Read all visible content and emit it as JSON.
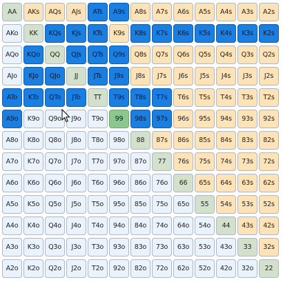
{
  "grid": {
    "rows": [
      [
        {
          "l": "AA",
          "s": 0
        },
        {
          "l": "AKs",
          "s": 0
        },
        {
          "l": "AQs",
          "s": 0
        },
        {
          "l": "AJs",
          "s": 0
        },
        {
          "l": "ATs",
          "s": 1
        },
        {
          "l": "A9s",
          "s": 1
        },
        {
          "l": "A8s",
          "s": 0
        },
        {
          "l": "A7s",
          "s": 0
        },
        {
          "l": "A6s",
          "s": 0
        },
        {
          "l": "A5s",
          "s": 0
        },
        {
          "l": "A4s",
          "s": 0
        },
        {
          "l": "A3s",
          "s": 0
        },
        {
          "l": "A2s",
          "s": 0
        }
      ],
      [
        {
          "l": "AKo",
          "s": 0
        },
        {
          "l": "KK",
          "s": 0
        },
        {
          "l": "KQs",
          "s": 1
        },
        {
          "l": "KJs",
          "s": 1
        },
        {
          "l": "KTs",
          "s": 1
        },
        {
          "l": "K9s",
          "s": 0
        },
        {
          "l": "K8s",
          "s": 1
        },
        {
          "l": "K7s",
          "s": 1
        },
        {
          "l": "K6s",
          "s": 1
        },
        {
          "l": "K5s",
          "s": 1
        },
        {
          "l": "K4s",
          "s": 1
        },
        {
          "l": "K3s",
          "s": 1
        },
        {
          "l": "K2s",
          "s": 1
        }
      ],
      [
        {
          "l": "AQo",
          "s": 0
        },
        {
          "l": "KQo",
          "s": 1
        },
        {
          "l": "QQ",
          "s": 0
        },
        {
          "l": "QJs",
          "s": 1
        },
        {
          "l": "QTs",
          "s": 1
        },
        {
          "l": "Q9s",
          "s": 1
        },
        {
          "l": "Q8s",
          "s": 0
        },
        {
          "l": "Q7s",
          "s": 0
        },
        {
          "l": "Q6s",
          "s": 0
        },
        {
          "l": "Q5s",
          "s": 0
        },
        {
          "l": "Q4s",
          "s": 0
        },
        {
          "l": "Q3s",
          "s": 0
        },
        {
          "l": "Q2s",
          "s": 0
        }
      ],
      [
        {
          "l": "AJo",
          "s": 0
        },
        {
          "l": "KJo",
          "s": 1
        },
        {
          "l": "QJo",
          "s": 1
        },
        {
          "l": "JJ",
          "s": 0
        },
        {
          "l": "JTs",
          "s": 1
        },
        {
          "l": "J9s",
          "s": 1
        },
        {
          "l": "J8s",
          "s": 0
        },
        {
          "l": "J7s",
          "s": 0
        },
        {
          "l": "J6s",
          "s": 0
        },
        {
          "l": "J5s",
          "s": 0
        },
        {
          "l": "J4s",
          "s": 0
        },
        {
          "l": "J3s",
          "s": 0
        },
        {
          "l": "J2s",
          "s": 0
        }
      ],
      [
        {
          "l": "ATo",
          "s": 1
        },
        {
          "l": "KTo",
          "s": 1
        },
        {
          "l": "QTo",
          "s": 1
        },
        {
          "l": "JTo",
          "s": 1
        },
        {
          "l": "TT",
          "s": 0
        },
        {
          "l": "T9s",
          "s": 1
        },
        {
          "l": "T8s",
          "s": 1
        },
        {
          "l": "T7s",
          "s": 1
        },
        {
          "l": "T6s",
          "s": 0
        },
        {
          "l": "T5s",
          "s": 0
        },
        {
          "l": "T4s",
          "s": 0
        },
        {
          "l": "T3s",
          "s": 0
        },
        {
          "l": "T2s",
          "s": 0
        }
      ],
      [
        {
          "l": "A9o",
          "s": 1
        },
        {
          "l": "K9o",
          "s": 0
        },
        {
          "l": "Q9o",
          "s": 0
        },
        {
          "l": "J9o",
          "s": 0
        },
        {
          "l": "T9o",
          "s": 0
        },
        {
          "l": "99",
          "s": 1
        },
        {
          "l": "98s",
          "s": 1
        },
        {
          "l": "97s",
          "s": 1
        },
        {
          "l": "96s",
          "s": 0
        },
        {
          "l": "95s",
          "s": 0
        },
        {
          "l": "94s",
          "s": 0
        },
        {
          "l": "93s",
          "s": 0
        },
        {
          "l": "92s",
          "s": 0
        }
      ],
      [
        {
          "l": "A8o",
          "s": 0
        },
        {
          "l": "K8o",
          "s": 0
        },
        {
          "l": "Q8o",
          "s": 0
        },
        {
          "l": "J8o",
          "s": 0
        },
        {
          "l": "T8o",
          "s": 0
        },
        {
          "l": "98o",
          "s": 0
        },
        {
          "l": "88",
          "s": 0
        },
        {
          "l": "87s",
          "s": 0
        },
        {
          "l": "86s",
          "s": 0
        },
        {
          "l": "85s",
          "s": 0
        },
        {
          "l": "84s",
          "s": 0
        },
        {
          "l": "83s",
          "s": 0
        },
        {
          "l": "82s",
          "s": 0
        }
      ],
      [
        {
          "l": "A7o",
          "s": 0
        },
        {
          "l": "K7o",
          "s": 0
        },
        {
          "l": "Q7o",
          "s": 0
        },
        {
          "l": "J7o",
          "s": 0
        },
        {
          "l": "T7o",
          "s": 0
        },
        {
          "l": "97o",
          "s": 0
        },
        {
          "l": "87o",
          "s": 0
        },
        {
          "l": "77",
          "s": 0
        },
        {
          "l": "76s",
          "s": 0
        },
        {
          "l": "75s",
          "s": 0
        },
        {
          "l": "74s",
          "s": 0
        },
        {
          "l": "73s",
          "s": 0
        },
        {
          "l": "72s",
          "s": 0
        }
      ],
      [
        {
          "l": "A6o",
          "s": 0
        },
        {
          "l": "K6o",
          "s": 0
        },
        {
          "l": "Q6o",
          "s": 0
        },
        {
          "l": "J6o",
          "s": 0
        },
        {
          "l": "T6o",
          "s": 0
        },
        {
          "l": "96o",
          "s": 0
        },
        {
          "l": "86o",
          "s": 0
        },
        {
          "l": "76o",
          "s": 0
        },
        {
          "l": "66",
          "s": 0
        },
        {
          "l": "65s",
          "s": 0
        },
        {
          "l": "64s",
          "s": 0
        },
        {
          "l": "63s",
          "s": 0
        },
        {
          "l": "62s",
          "s": 0
        }
      ],
      [
        {
          "l": "A5o",
          "s": 0
        },
        {
          "l": "K5o",
          "s": 0
        },
        {
          "l": "Q5o",
          "s": 0
        },
        {
          "l": "J5o",
          "s": 0
        },
        {
          "l": "T5o",
          "s": 0
        },
        {
          "l": "95o",
          "s": 0
        },
        {
          "l": "85o",
          "s": 0
        },
        {
          "l": "75o",
          "s": 0
        },
        {
          "l": "65o",
          "s": 0
        },
        {
          "l": "55",
          "s": 0
        },
        {
          "l": "54s",
          "s": 0
        },
        {
          "l": "53s",
          "s": 0
        },
        {
          "l": "52s",
          "s": 0
        }
      ],
      [
        {
          "l": "A4o",
          "s": 0
        },
        {
          "l": "K4o",
          "s": 0
        },
        {
          "l": "Q4o",
          "s": 0
        },
        {
          "l": "J4o",
          "s": 0
        },
        {
          "l": "T4o",
          "s": 0
        },
        {
          "l": "94o",
          "s": 0
        },
        {
          "l": "84o",
          "s": 0
        },
        {
          "l": "74o",
          "s": 0
        },
        {
          "l": "64o",
          "s": 0
        },
        {
          "l": "54o",
          "s": 0
        },
        {
          "l": "44",
          "s": 0
        },
        {
          "l": "43s",
          "s": 0
        },
        {
          "l": "42s",
          "s": 0
        }
      ],
      [
        {
          "l": "A3o",
          "s": 0
        },
        {
          "l": "K3o",
          "s": 0
        },
        {
          "l": "Q3o",
          "s": 0
        },
        {
          "l": "J3o",
          "s": 0
        },
        {
          "l": "T3o",
          "s": 0
        },
        {
          "l": "93o",
          "s": 0
        },
        {
          "l": "83o",
          "s": 0
        },
        {
          "l": "73o",
          "s": 0
        },
        {
          "l": "63o",
          "s": 0
        },
        {
          "l": "53o",
          "s": 0
        },
        {
          "l": "43o",
          "s": 0
        },
        {
          "l": "33",
          "s": 0
        },
        {
          "l": "32s",
          "s": 0
        }
      ],
      [
        {
          "l": "A2o",
          "s": 0
        },
        {
          "l": "K2o",
          "s": 0
        },
        {
          "l": "Q2o",
          "s": 0
        },
        {
          "l": "J2o",
          "s": 0
        },
        {
          "l": "T2o",
          "s": 0
        },
        {
          "l": "92o",
          "s": 0
        },
        {
          "l": "82o",
          "s": 0
        },
        {
          "l": "72o",
          "s": 0
        },
        {
          "l": "62o",
          "s": 0
        },
        {
          "l": "52o",
          "s": 0
        },
        {
          "l": "42o",
          "s": 0
        },
        {
          "l": "32o",
          "s": 0
        },
        {
          "l": "22",
          "s": 0
        }
      ]
    ]
  },
  "colors": {
    "pair": "#d3e0cc",
    "suited": "#fde3b7",
    "offsuit": "#eaf2fb",
    "selected": "#1a7fe0"
  },
  "cursor": {
    "icon": "mouse-pointer-icon"
  }
}
